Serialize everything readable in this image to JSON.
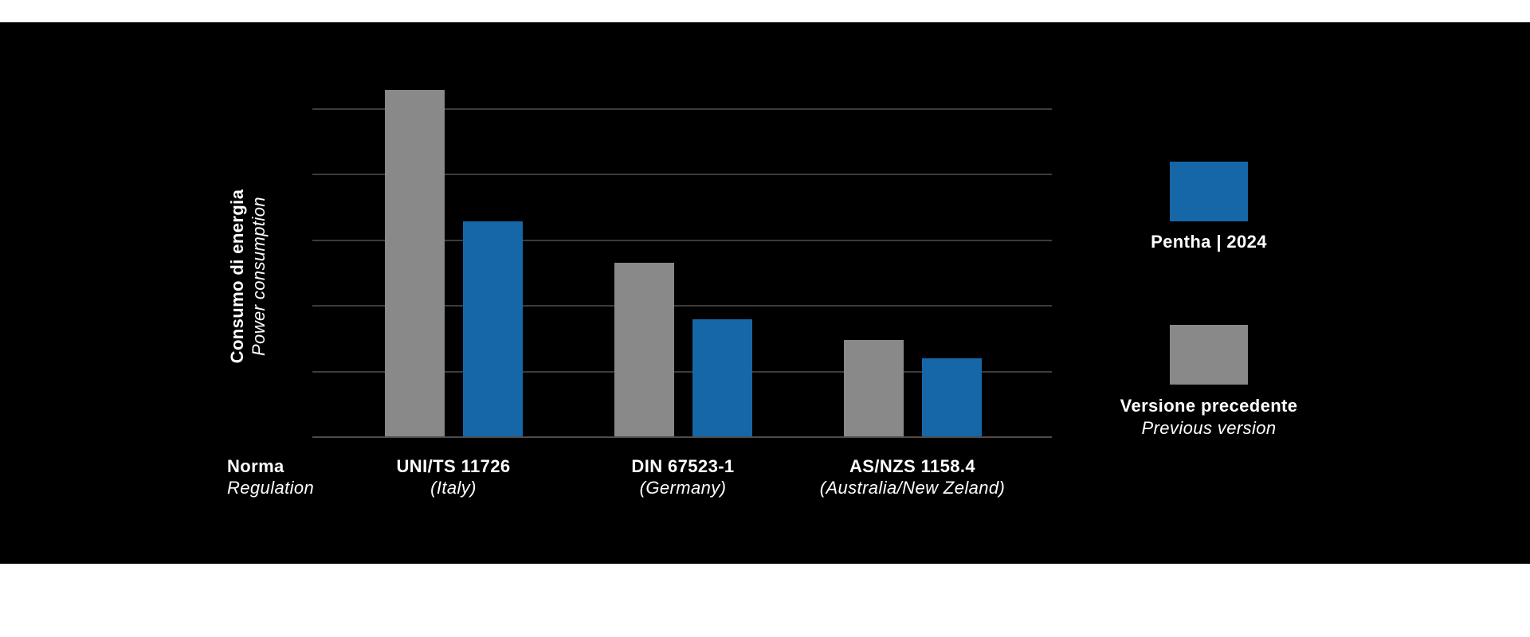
{
  "chart_data": {
    "type": "bar",
    "title": "",
    "xlabel": "Norma",
    "xlabel_en": "Regulation",
    "ylabel": "Consumo di energia",
    "ylabel_en": "Power consumption",
    "categories": [
      {
        "name": "UNI/TS 11726",
        "sub": "(Italy)"
      },
      {
        "name": "DIN 67523-1",
        "sub": "(Germany)"
      },
      {
        "name": "AS/NZS 1158.4",
        "sub": "(Australia/New Zeland)"
      }
    ],
    "series": [
      {
        "id": "previous",
        "name": "Versione precedente",
        "name_en": "Previous version",
        "color": "#898989",
        "values": [
          5.27,
          2.64,
          1.47
        ]
      },
      {
        "id": "pentha",
        "name": "Pentha | 2024",
        "color": "#1667A8",
        "values": [
          3.27,
          1.78,
          1.19
        ]
      }
    ],
    "ylim": [
      0,
      6
    ],
    "gridlines": [
      1,
      2,
      3,
      4,
      5
    ],
    "y_tick_labels": false,
    "grid": true,
    "legend_position": "right"
  },
  "legend": {
    "items": [
      {
        "label": "Pentha | 2024",
        "color": "#1667A8"
      },
      {
        "label": "Versione precedente",
        "label_en": "Previous version",
        "color": "#898989"
      }
    ]
  },
  "colors": {
    "background": "#000000",
    "page_margin": "#FFFFFF",
    "text": "#FFFFFF",
    "gridline": "#3C3C3C",
    "axis_line": "#4D4D4D",
    "pentha_blue": "#1667A8",
    "previous_gray": "#898989"
  }
}
